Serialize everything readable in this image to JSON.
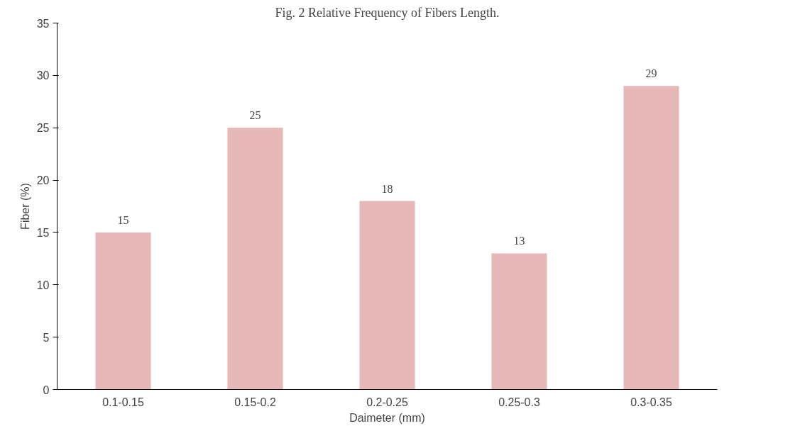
{
  "chart_data": {
    "type": "bar",
    "title": "Fig. 2 Relative Frequency of Fibers Length.",
    "xlabel": "Daimeter (mm)",
    "ylabel": "Fiber (%)",
    "categories": [
      "0.1-0.15",
      "0.15-0.2",
      "0.2-0.25",
      "0.25-0.3",
      "0.3-0.35"
    ],
    "values": [
      15,
      25,
      18,
      13,
      29
    ],
    "color": "#e6b8b7",
    "ylim": [
      0,
      35
    ],
    "yticks": [
      0,
      5,
      10,
      15,
      20,
      25,
      30,
      35
    ],
    "grid": false,
    "data_labels": true
  }
}
